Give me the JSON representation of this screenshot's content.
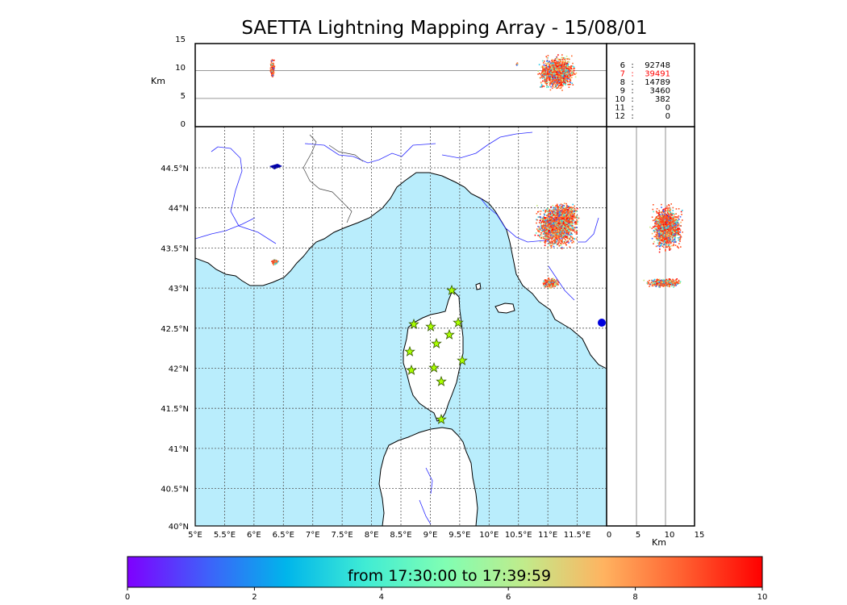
{
  "title": "SAETTA Lightning Mapping Array - 15/08/01",
  "km_label": "Km",
  "alt_ticks": [
    "15",
    "10",
    "5",
    "0"
  ],
  "lon_ticks": [
    "5°E",
    "5.5°E",
    "6°E",
    "6.5°E",
    "7°E",
    "7.5°E",
    "8°E",
    "8.5°E",
    "9°E",
    "9.5°E",
    "10°E",
    "10.5°E",
    "11°E",
    "11.5°E"
  ],
  "lat_ticks": [
    "44.5°N",
    "44°N",
    "43.5°N",
    "43°N",
    "42.5°N",
    "42°N",
    "41.5°N",
    "41°N",
    "40.5°N",
    "40°N"
  ],
  "side_ticks": [
    "0",
    "5",
    "10",
    "15"
  ],
  "station_counts": [
    {
      "stations": "6",
      "sep": ":",
      "count": "92748",
      "color": "#000000"
    },
    {
      "stations": "7",
      "sep": ":",
      "count": "39491",
      "color": "#ff0000"
    },
    {
      "stations": "8",
      "sep": ":",
      "count": "14789",
      "color": "#000000"
    },
    {
      "stations": "9",
      "sep": ":",
      "count": "3460",
      "color": "#000000"
    },
    {
      "stations": "10",
      "sep": ":",
      "count": "382",
      "color": "#000000"
    },
    {
      "stations": "11",
      "sep": ":",
      "count": "0",
      "color": "#000000"
    },
    {
      "stations": "12",
      "sep": ":",
      "count": "0",
      "color": "#000000"
    }
  ],
  "colorbar": {
    "label": "from 17:30:00 to 17:39:59",
    "ticks": [
      "0",
      "2",
      "4",
      "6",
      "8",
      "10"
    ],
    "colors": [
      "#7f00ff",
      "#3f60fa",
      "#00b5eb",
      "#40ecd4",
      "#80feb3",
      "#c1eb8b",
      "#ffb360",
      "#ff6030",
      "#ff0000"
    ]
  },
  "colors": {
    "sea": "#b9edfc",
    "land": "#ffffff",
    "rivers": "#0000ff",
    "borders": "#555555",
    "stations": "#aaff00",
    "lightning_main": "#ff4f1f"
  }
}
